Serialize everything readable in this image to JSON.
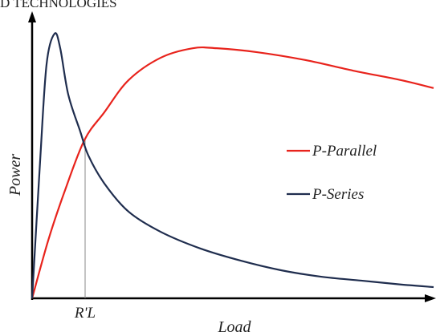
{
  "chart_data": {
    "type": "line",
    "title": "D TECHNOLOGIES",
    "x_label": "Load",
    "y_label": "Power",
    "xlim": [
      0,
      100
    ],
    "ylim": [
      0,
      100
    ],
    "legend": "right",
    "annotation": {
      "text": "R'L",
      "x": 13.2,
      "y": 56.3
    },
    "series": [
      {
        "name": "P-Parallel",
        "color": "#e8231c",
        "x": [
          0,
          4,
          8,
          13,
          18,
          24,
          32,
          40,
          46,
          56,
          68,
          80,
          92,
          100
        ],
        "values": [
          0,
          20.6,
          37.7,
          56.3,
          66.3,
          77.7,
          85.7,
          89.1,
          89.1,
          87.7,
          84.9,
          81.1,
          77.7,
          74.9
        ]
      },
      {
        "name": "P-Series",
        "color": "#1f2d4e",
        "x": [
          0,
          2,
          3.6,
          5.6,
          7,
          9,
          12,
          14,
          18,
          24,
          32,
          42,
          52,
          62,
          72,
          82,
          92,
          100
        ],
        "values": [
          0,
          49.1,
          83.4,
          94.3,
          89.1,
          72.6,
          59.4,
          50.9,
          40.9,
          30.9,
          23.7,
          17.7,
          13.4,
          10,
          7.7,
          6.3,
          4.9,
          4
        ]
      }
    ]
  }
}
